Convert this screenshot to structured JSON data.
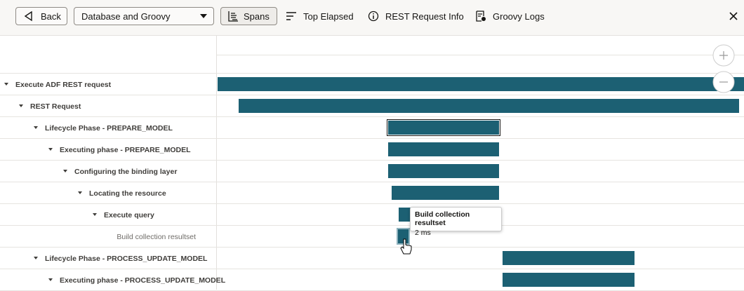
{
  "toolbar": {
    "back": "Back",
    "select": "Database and Groovy",
    "buttons": [
      "Spans",
      "Top Elapsed",
      "REST Request Info",
      "Groovy Logs"
    ]
  },
  "rows": [
    "Execute ADF REST request",
    "REST Request",
    "Lifecycle Phase - PREPARE_MODEL",
    "Executing phase - PREPARE_MODEL",
    "Configuring the binding layer",
    "Locating the resource",
    "Execute query",
    "Build collection resultset",
    "Lifecycle Phase - PROCESS_UPDATE_MODEL",
    "Executing phase - PROCESS_UPDATE_MODEL"
  ],
  "tooltip": {
    "title": "Build collection resultset",
    "detail": "2 ms"
  }
}
